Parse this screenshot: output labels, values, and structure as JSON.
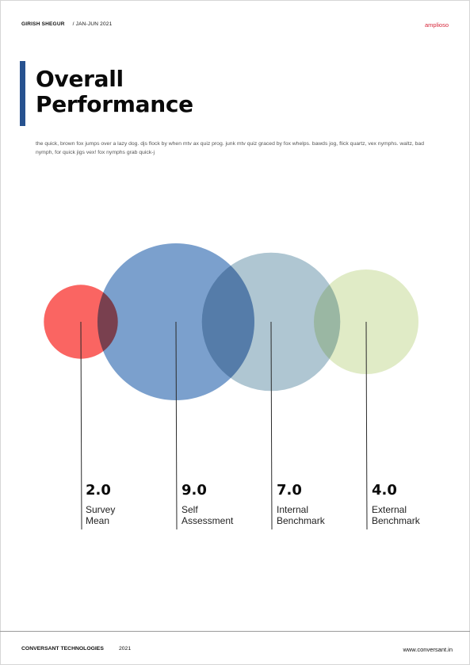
{
  "header": {
    "author": "GIRISH SHEGUR",
    "period": "/ JAN-JUN 2021",
    "brand": "amplioso"
  },
  "title": {
    "line1": "Overall",
    "line2": "Performance"
  },
  "intro_text": "the quick, brown fox jumps over a lazy dog. djs flock by when mtv ax quiz prog. junk mtv quiz graced by fox whelps. bawds jog, flick quartz, vex nymphs. waltz, bad nymph, for quick jigs vex! fox nymphs grab quick-j",
  "metrics": [
    {
      "value": "2.0",
      "label": "Survey\nMean",
      "score": 2.0,
      "color": "#f94a46"
    },
    {
      "value": "9.0",
      "label": "Self\nAssessment",
      "score": 9.0,
      "color": "#4f80bc"
    },
    {
      "value": "7.0",
      "label": "Internal\nBenchmark",
      "score": 7.0,
      "color": "#90b0c1"
    },
    {
      "value": "4.0",
      "label": "External\nBenchmark",
      "score": 4.0,
      "color": "#d5e4b3"
    }
  ],
  "footer": {
    "company": "CONVERSANT TECHNOLOGIES",
    "year": "2021",
    "url": "www.conversant.in"
  }
}
